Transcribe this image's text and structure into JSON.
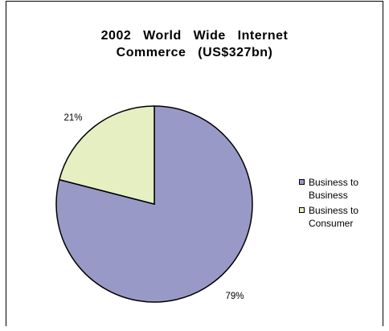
{
  "chart_data": {
    "type": "pie",
    "title": [
      "2002 World Wide Internet",
      "Commerce (US$327bn)"
    ],
    "categories": [
      "Business to Business",
      "Business to Consumer"
    ],
    "values": [
      79,
      21
    ],
    "data_labels": [
      "79%",
      "21%"
    ],
    "colors": [
      "#9999c8",
      "#e6efc2"
    ],
    "legend_position": "right"
  },
  "legend": [
    {
      "label": "Business to Business",
      "color": "#9999c8"
    },
    {
      "label": "Business to Consumer",
      "color": "#e6efc2"
    }
  ]
}
